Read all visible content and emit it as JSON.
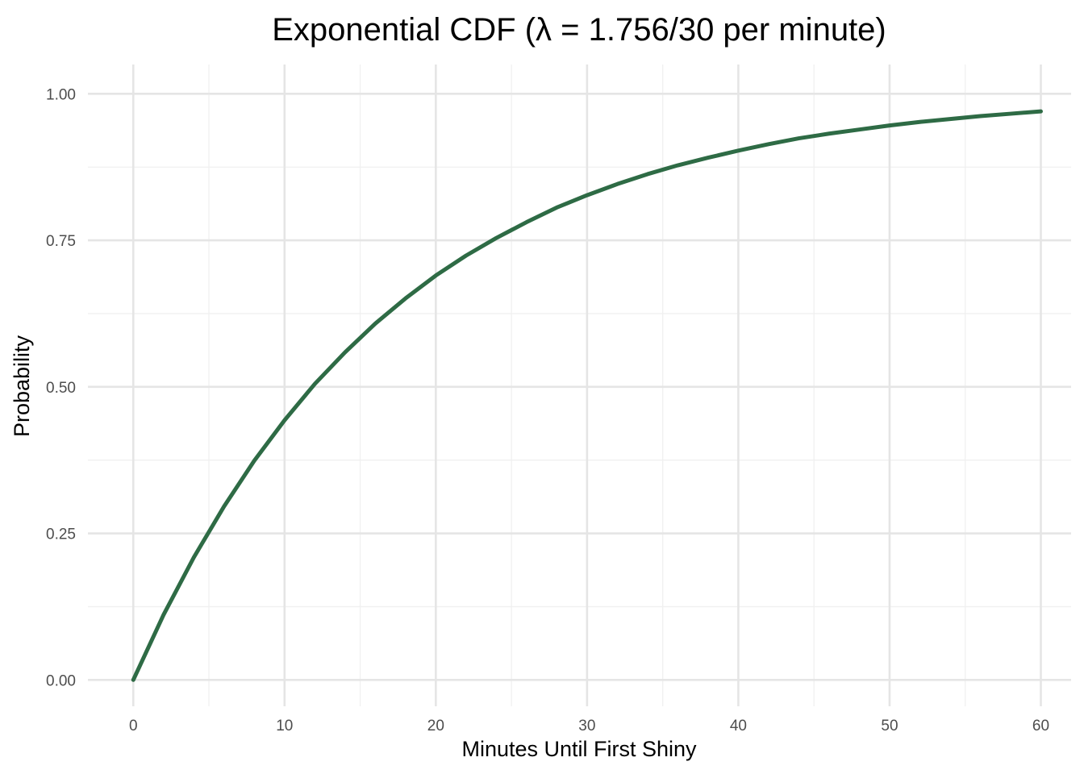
{
  "chart_data": {
    "type": "line",
    "title": "Exponential CDF (λ = 1.756/30 per minute)",
    "xlabel": "Minutes Until First Shiny",
    "ylabel": "Probability",
    "xlim": [
      -3,
      62
    ],
    "ylim": [
      -0.045,
      1.05
    ],
    "x_ticks": [
      0,
      10,
      20,
      30,
      40,
      50,
      60
    ],
    "x_tick_labels": [
      "0",
      "10",
      "20",
      "30",
      "40",
      "50",
      "60"
    ],
    "x_minor_ticks": [
      5,
      15,
      25,
      35,
      45,
      55
    ],
    "y_ticks": [
      0,
      0.25,
      0.5,
      0.75,
      1.0
    ],
    "y_tick_labels": [
      "0.00",
      "0.25",
      "0.50",
      "0.75",
      "1.00"
    ],
    "y_minor_ticks": [
      0.125,
      0.375,
      0.625,
      0.875
    ],
    "grid": true,
    "line_color": "#2e6b45",
    "series": [
      {
        "x": [
          0,
          2,
          4,
          6,
          8,
          10,
          12,
          14,
          16,
          18,
          20,
          22,
          24,
          26,
          28,
          30,
          32,
          34,
          36,
          38,
          40,
          42,
          44,
          46,
          48,
          50,
          52,
          54,
          56,
          58,
          60
        ],
        "values": [
          0,
          0.111,
          0.209,
          0.296,
          0.374,
          0.443,
          0.505,
          0.559,
          0.608,
          0.651,
          0.69,
          0.724,
          0.754,
          0.781,
          0.806,
          0.827,
          0.846,
          0.863,
          0.878,
          0.891,
          0.903,
          0.914,
          0.924,
          0.932,
          0.939,
          0.946,
          0.952,
          0.957,
          0.962,
          0.966,
          0.97
        ]
      }
    ]
  }
}
